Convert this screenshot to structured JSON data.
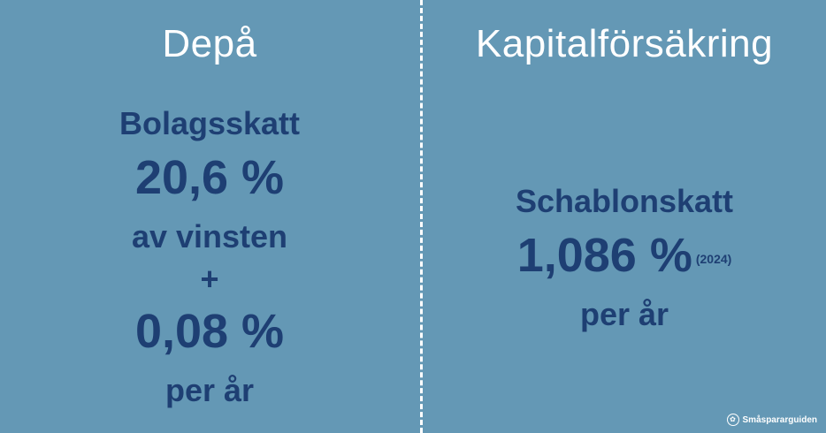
{
  "left": {
    "heading": "Depå",
    "line1": "Bolagsskatt",
    "line2": "20,6 %",
    "line3": "av vinsten",
    "plus": "+",
    "line4": "0,08 %",
    "line5": "per år"
  },
  "right": {
    "heading": "Kapitalförsäkring",
    "line1": "Schablonskatt",
    "rate": "1,086 %",
    "year": "(2024)",
    "line3": "per år"
  },
  "brand": {
    "name": "Småspararguiden",
    "icon": "leaf-icon"
  },
  "colors": {
    "background": "#6498b5",
    "dark_text": "#1e3f73",
    "light_text": "#ffffff"
  }
}
